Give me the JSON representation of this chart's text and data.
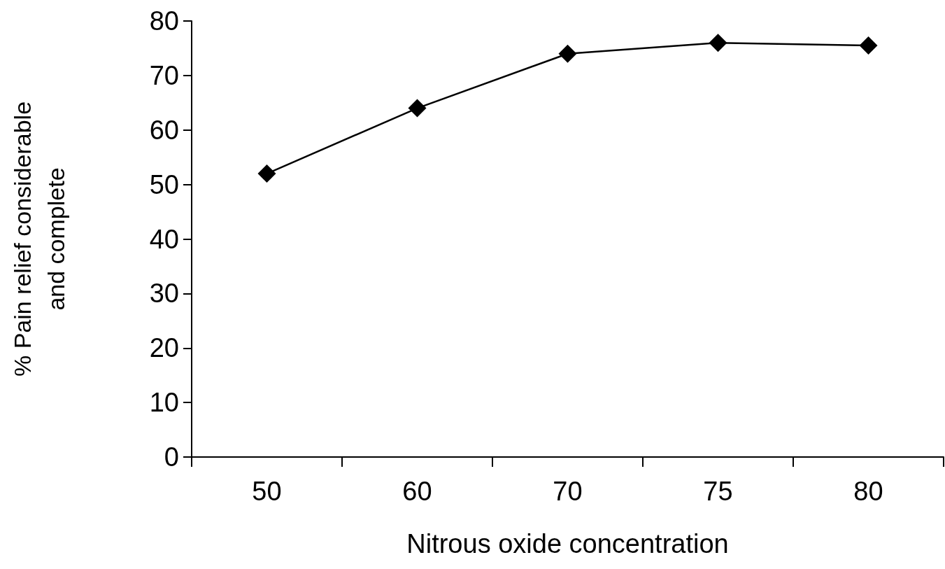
{
  "chart_data": {
    "type": "line",
    "xlabel": "Nitrous oxide concentration",
    "ylabel": "% Pain relief considerable and complete",
    "categories": [
      "50",
      "60",
      "70",
      "75",
      "80"
    ],
    "series": [
      {
        "color": "#000000",
        "values": [
          52,
          64,
          74,
          76,
          75.5
        ]
      }
    ],
    "ylim": [
      0,
      80
    ],
    "yticks": [
      0,
      10,
      20,
      30,
      40,
      50,
      60,
      70,
      80
    ],
    "marker": "diamond",
    "line_style": "solid"
  }
}
